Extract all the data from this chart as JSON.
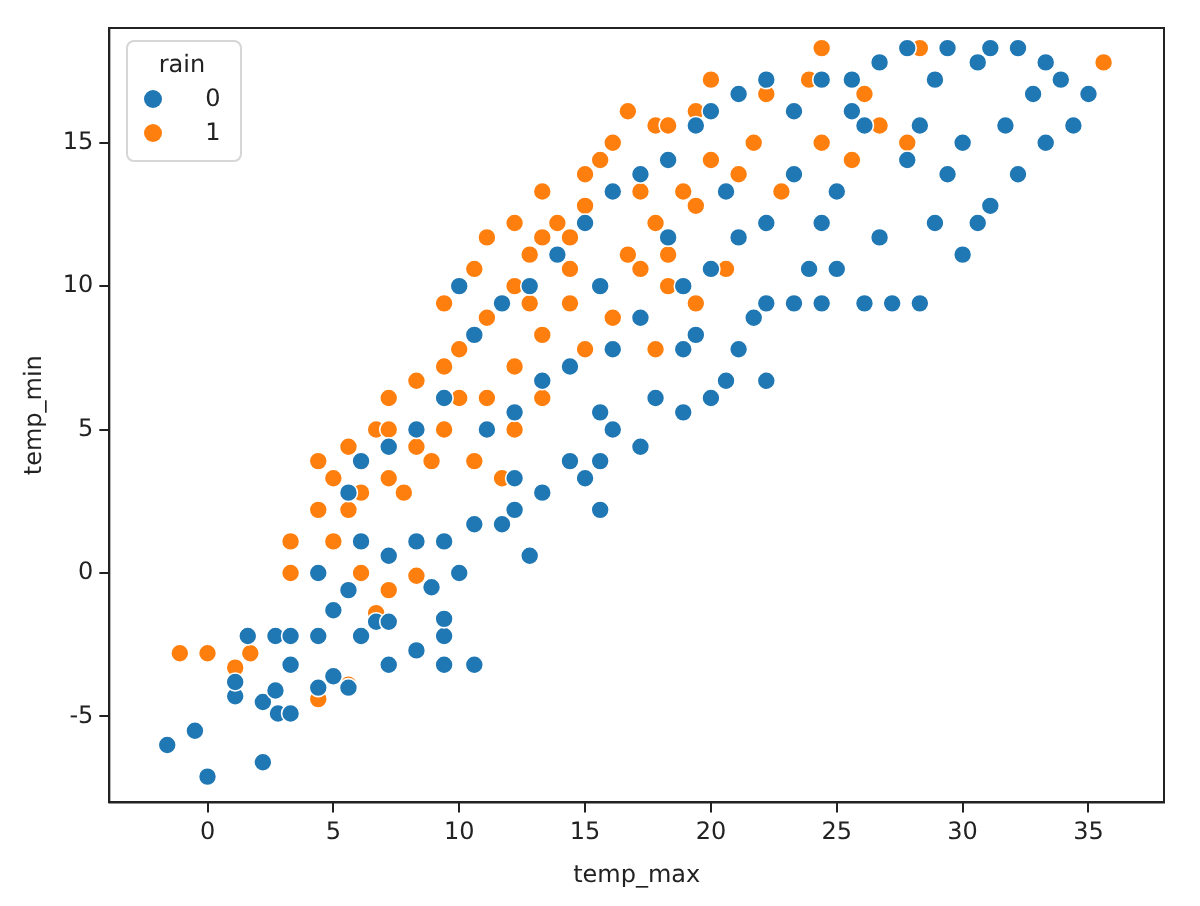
{
  "chart_data": {
    "type": "scatter",
    "xlabel": "temp_max",
    "ylabel": "temp_min",
    "legend_title": "rain",
    "legend": "top left",
    "marker": "circle",
    "grid": false,
    "xlim": [
      -3.9,
      38
    ],
    "xticks": [
      0,
      5,
      10,
      15,
      20,
      25,
      30,
      35
    ],
    "ylim": [
      -8,
      19
    ],
    "yticks": [
      -5,
      0,
      5,
      10,
      15
    ],
    "series": [
      {
        "name": "0",
        "color": "#1f77b4",
        "x": [
          -1.6,
          -0.5,
          0,
          2.2,
          1.1,
          1.1,
          2.2,
          2.8,
          3.3,
          2.7,
          1.6,
          2.7,
          3.3,
          3.3,
          4.4,
          5,
          5.6,
          4.4,
          5,
          6.1,
          5.6,
          6.7,
          7.2,
          7.2,
          8.3,
          9.4,
          9.4,
          10.6,
          9.4,
          8.9,
          10,
          4.4,
          6.1,
          7.2,
          8.3,
          9.4,
          10.6,
          11.7,
          12.2,
          12.8,
          12.2,
          13.3,
          14.4,
          15,
          15.6,
          15.6,
          16.1,
          17.2,
          15.6,
          17.8,
          18.9,
          20,
          20.6,
          21.1,
          22.2,
          22.2,
          23.3,
          24.4,
          25,
          26.1,
          27.2,
          28.3,
          28.9,
          30,
          30.6,
          31.1,
          32.2,
          33.3,
          34.4,
          35,
          33.9,
          33.3,
          32.2,
          31.1,
          30.6,
          28.9,
          29.4,
          27.8,
          26.7,
          25.6,
          24.4,
          23.3,
          22.2,
          21.1,
          20,
          19.4,
          18.3,
          17.2,
          16.1,
          15,
          13.9,
          12.8,
          11.7,
          10.6,
          10,
          9.4,
          8.3,
          7.2,
          6.1,
          5.6,
          20,
          22.2,
          25,
          27.8,
          26.1,
          23.3,
          21.1,
          18.9,
          17.2,
          16.1,
          14.4,
          13.3,
          12.2,
          11.1,
          19.4,
          24.4,
          28.3,
          30,
          31.7,
          32.8,
          20.6,
          18.3,
          15.6,
          26.7,
          29.4,
          23.9,
          18.9,
          21.7,
          25.6
        ],
        "values": [
          -6,
          -5.5,
          -7.1,
          -6.6,
          -4.3,
          -3.8,
          -4.5,
          -4.9,
          -4.9,
          -4.1,
          -2.2,
          -2.2,
          -2.2,
          -3.2,
          -4,
          -3.6,
          -4,
          -2.2,
          -1.3,
          -2.2,
          -0.6,
          -1.7,
          -1.7,
          -3.2,
          -2.7,
          -2.2,
          -3.2,
          -3.2,
          -1.6,
          -0.5,
          0,
          0,
          1.1,
          0.6,
          1.1,
          1.1,
          1.7,
          1.7,
          2.2,
          0.6,
          3.3,
          2.8,
          3.9,
          3.3,
          2.2,
          3.9,
          5,
          4.4,
          5.6,
          6.1,
          5.6,
          6.1,
          6.7,
          7.8,
          6.7,
          9.4,
          9.4,
          9.4,
          10.6,
          9.4,
          9.4,
          9.4,
          12.2,
          11.1,
          12.2,
          12.8,
          13.9,
          15,
          15.6,
          16.7,
          17.2,
          17.8,
          18.3,
          18.3,
          17.8,
          17.2,
          18.3,
          18.3,
          17.8,
          17.2,
          17.2,
          16.1,
          17.2,
          16.7,
          16.1,
          15.6,
          14.4,
          13.9,
          13.3,
          12.2,
          11.1,
          10,
          9.4,
          8.3,
          10,
          6.1,
          5,
          4.4,
          3.9,
          2.8,
          10.6,
          12.2,
          13.3,
          14.4,
          15.6,
          13.9,
          11.7,
          10,
          8.9,
          7.8,
          7.2,
          6.7,
          5.6,
          5,
          8.3,
          12.2,
          15.6,
          15,
          15.6,
          16.7,
          13.3,
          11.7,
          10,
          11.7,
          13.9,
          10.6,
          7.8,
          8.9,
          16.1
        ]
      },
      {
        "name": "1",
        "color": "#ff7f0e",
        "x": [
          -1.1,
          0,
          1.1,
          1.7,
          4.4,
          5.6,
          3.3,
          3.3,
          4.4,
          5,
          6.1,
          5,
          5.6,
          6.7,
          7.2,
          6.7,
          7.2,
          8.3,
          4.4,
          5.6,
          7.8,
          8.9,
          10,
          10,
          9.4,
          10.6,
          11.1,
          12.2,
          12.8,
          13.3,
          13.9,
          14.4,
          15,
          15,
          15.6,
          16.1,
          16.7,
          17.2,
          17.8,
          18.3,
          19.4,
          20,
          22.2,
          23.9,
          24.4,
          28.3,
          35.6,
          21.7,
          20,
          18.9,
          17.8,
          16.7,
          14.4,
          13.3,
          12.2,
          11.1,
          9.4,
          8.3,
          7.2,
          6.1,
          16.1,
          17.2,
          18.3,
          19.4,
          15,
          13.3,
          12.2,
          10.6,
          20.6,
          22.8,
          24.4,
          26.1,
          25.6,
          21.1,
          19.4,
          18.3,
          12.8,
          14.4,
          9.4,
          8.3,
          7.2,
          17.8,
          11.7,
          26.7,
          27.8,
          13.3,
          12.2,
          11.1
        ],
        "values": [
          -2.8,
          -2.8,
          -3.3,
          -2.8,
          -4.4,
          -3.9,
          0,
          1.1,
          2.2,
          1.1,
          0,
          3.3,
          4.4,
          5,
          6.1,
          -1.4,
          -0.6,
          -0.1,
          3.9,
          2.2,
          2.8,
          3.9,
          6.1,
          7.8,
          9.4,
          10.6,
          8.9,
          10,
          11.1,
          11.7,
          12.2,
          11.7,
          12.8,
          13.9,
          14.4,
          15,
          16.1,
          13.3,
          15.6,
          15.6,
          16.1,
          17.2,
          16.7,
          17.2,
          18.3,
          18.3,
          17.8,
          15,
          14.4,
          13.3,
          12.2,
          11.1,
          9.4,
          8.3,
          7.2,
          6.1,
          5,
          4.4,
          3.3,
          2.8,
          8.9,
          10.6,
          11.1,
          12.8,
          7.8,
          6.1,
          5,
          3.9,
          10.6,
          13.3,
          15,
          16.7,
          14.4,
          13.9,
          9.4,
          10,
          9.4,
          10.6,
          7.2,
          6.7,
          5,
          7.8,
          3.3,
          15.6,
          15,
          13.3,
          12.2,
          11.7
        ]
      }
    ]
  }
}
